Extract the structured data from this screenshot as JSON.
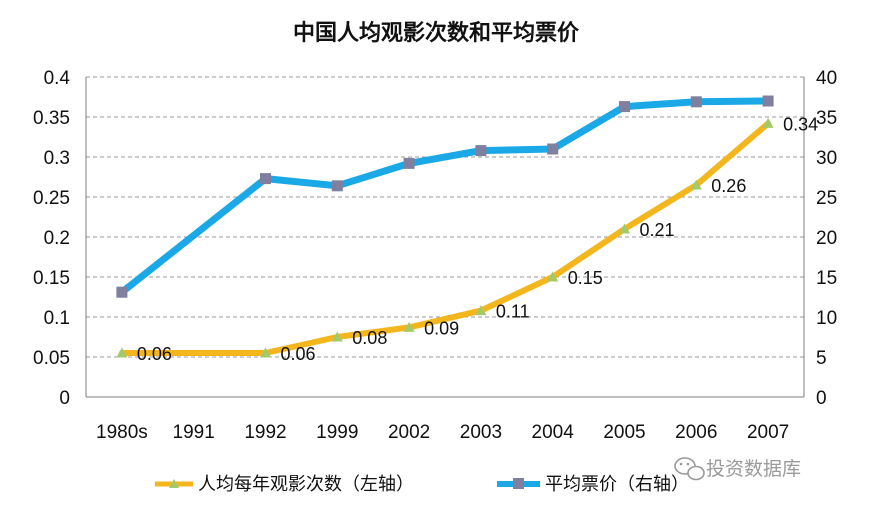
{
  "colors": {
    "series1": "#f4b61d",
    "series1_marker": "#a4c96a",
    "series2": "#1aa8e6",
    "series2_marker": "#7f7f9f",
    "grid": "#9a9a9a",
    "axis": "#7f7f7f"
  },
  "watermark": {
    "icon": "wechat-icon",
    "text": "投资数据库"
  },
  "chart_data": {
    "type": "line",
    "title": "中国人均观影次数和平均票价",
    "categories": [
      "1980s",
      "1991",
      "1992",
      "1999",
      "2002",
      "2003",
      "2004",
      "2005",
      "2006",
      "2007"
    ],
    "y_left": {
      "ylim": [
        0,
        0.4
      ],
      "ticks": [
        "0",
        "0.05",
        "0.1",
        "0.15",
        "0.2",
        "0.25",
        "0.3",
        "0.35",
        "0.4"
      ]
    },
    "y_right": {
      "ylim": [
        0,
        40
      ],
      "ticks": [
        "0",
        "5",
        "10",
        "15",
        "20",
        "25",
        "30",
        "35",
        "40"
      ]
    },
    "grid": true,
    "legend_position": "bottom",
    "series": [
      {
        "name": "人均每年观影次数（左轴）",
        "axis": "left",
        "values": [
          0.055,
          null,
          0.055,
          0.075,
          0.087,
          0.108,
          0.15,
          0.21,
          0.265,
          0.342
        ],
        "labels": [
          "0.06",
          "",
          "0.06",
          "0.08",
          "0.09",
          "0.11",
          "0.15",
          "0.21",
          "0.26",
          "0.34"
        ]
      },
      {
        "name": "平均票价（右轴）",
        "axis": "right",
        "values": [
          13.1,
          null,
          27.3,
          26.4,
          29.2,
          30.8,
          31.0,
          36.3,
          36.9,
          37.0
        ]
      }
    ]
  }
}
